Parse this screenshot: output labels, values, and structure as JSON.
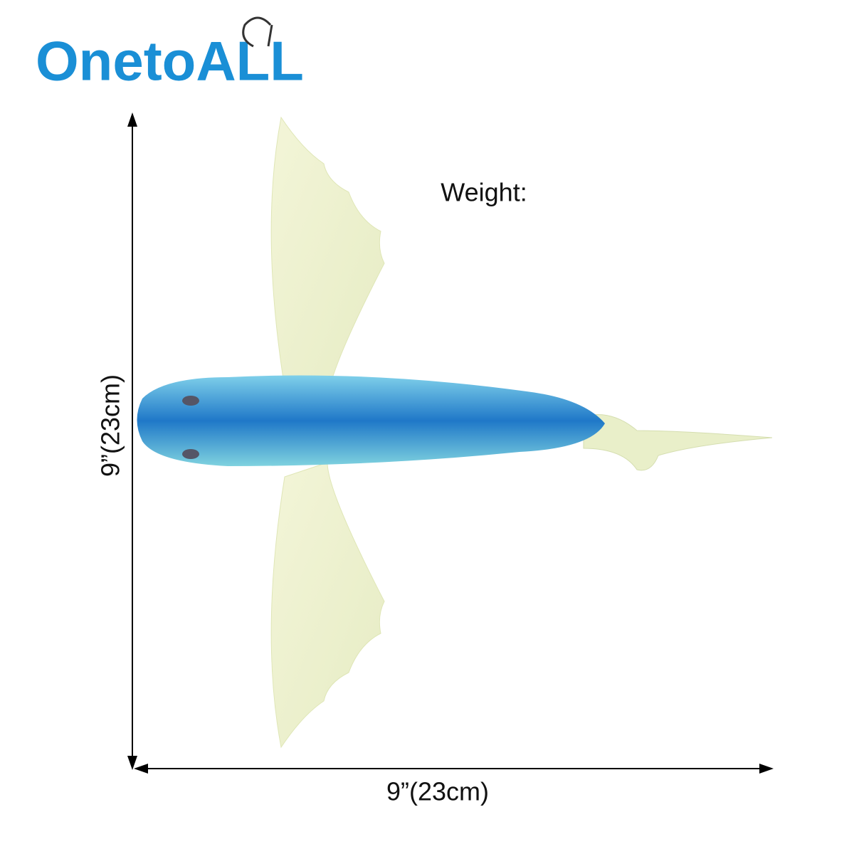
{
  "logo": "OnetoALL",
  "weight_label": "Weight:",
  "height_label": "9”(23cm)",
  "width_label": "9”(23cm)"
}
